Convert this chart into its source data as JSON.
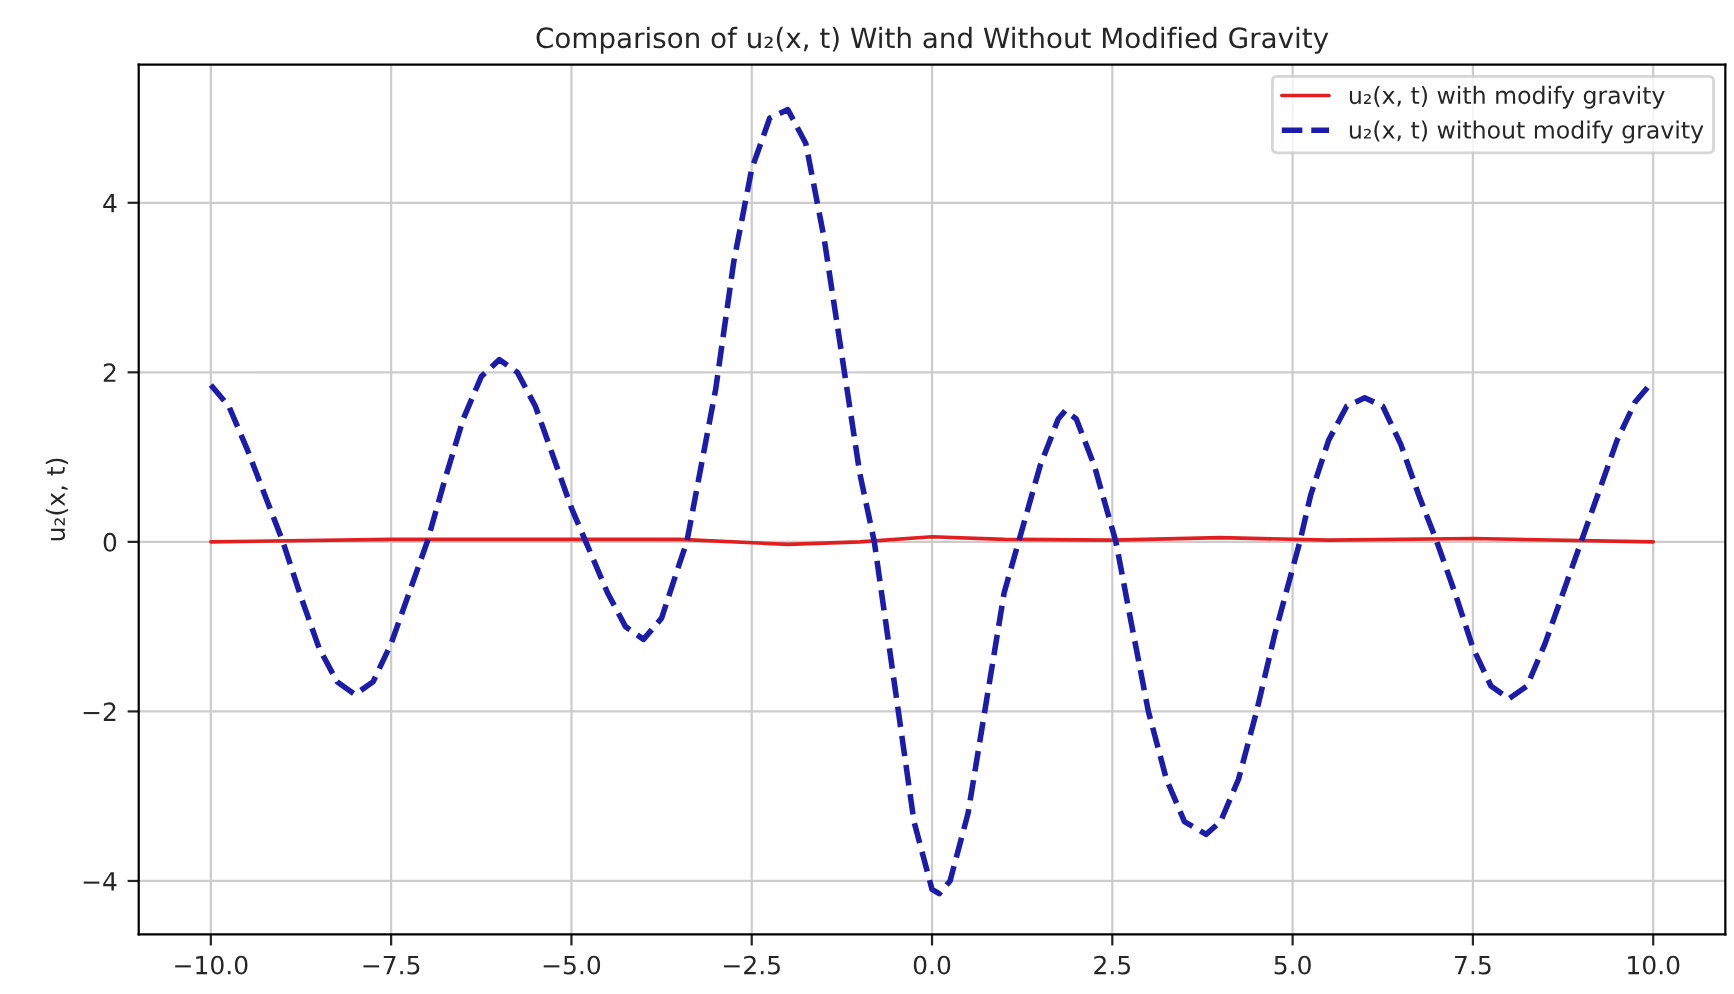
{
  "chart_data": {
    "type": "line",
    "title": "Comparison of u₂(x, t) With and Without Modified Gravity",
    "ylabel": "u₂(x, t)",
    "series": [
      {
        "name": "u₂(x, t) with modify gravity",
        "color": "#e02020",
        "line_style": "solid",
        "x": [
          -10,
          -7.5,
          -5,
          -3.5,
          -2,
          -1,
          0,
          1,
          2.5,
          4,
          5.5,
          7.5,
          10
        ],
        "values": [
          0,
          0.03,
          0.03,
          0.03,
          -0.03,
          0,
          0.06,
          0.03,
          0.02,
          0.05,
          0.02,
          0.04,
          0
        ]
      },
      {
        "name": "u₂(x, t) without modify gravity",
        "color": "#1c1caa",
        "line_style": "dashed",
        "x": [
          -10,
          -9.75,
          -9.5,
          -9.25,
          -9.0,
          -8.75,
          -8.5,
          -8.25,
          -8.0,
          -7.75,
          -7.5,
          -7.25,
          -7.0,
          -6.75,
          -6.5,
          -6.25,
          -6.0,
          -5.75,
          -5.5,
          -5.25,
          -5.0,
          -4.8,
          -4.5,
          -4.25,
          -4.0,
          -3.75,
          -3.5,
          -3.4,
          -3.0,
          -2.75,
          -2.5,
          -2.25,
          -2.0,
          -1.75,
          -1.5,
          -1.25,
          -1.0,
          -0.8,
          -0.5,
          -0.25,
          0.0,
          0.1,
          0.25,
          0.5,
          0.75,
          1.0,
          1.2,
          1.5,
          1.75,
          1.85,
          2.0,
          2.25,
          2.55,
          2.75,
          3.0,
          3.25,
          3.5,
          3.8,
          4.0,
          4.25,
          4.5,
          4.75,
          5.1,
          5.25,
          5.5,
          5.75,
          6.0,
          6.25,
          6.5,
          6.75,
          7.0,
          7.25,
          7.5,
          7.75,
          8.0,
          8.25,
          8.5,
          8.75,
          9.0,
          9.25,
          9.5,
          9.75,
          10
        ],
        "values": [
          1.85,
          1.6,
          1.1,
          0.55,
          0,
          -0.65,
          -1.25,
          -1.65,
          -1.8,
          -1.65,
          -1.2,
          -0.6,
          0,
          0.75,
          1.45,
          1.95,
          2.15,
          2.0,
          1.6,
          1.0,
          0.4,
          0,
          -0.6,
          -1.0,
          -1.15,
          -0.9,
          -0.25,
          0,
          1.8,
          3.3,
          4.4,
          5.0,
          5.1,
          4.7,
          3.6,
          2.2,
          0.8,
          0,
          -1.8,
          -3.3,
          -4.1,
          -4.15,
          -4.0,
          -3.2,
          -1.9,
          -0.6,
          0,
          0.9,
          1.45,
          1.55,
          1.45,
          0.9,
          0,
          -0.9,
          -2.0,
          -2.8,
          -3.3,
          -3.45,
          -3.3,
          -2.8,
          -2.0,
          -1.1,
          0,
          0.55,
          1.2,
          1.6,
          1.7,
          1.6,
          1.15,
          0.55,
          0,
          -0.6,
          -1.25,
          -1.7,
          -1.85,
          -1.7,
          -1.2,
          -0.6,
          0,
          0.6,
          1.2,
          1.65,
          1.9
        ]
      }
    ],
    "xlim": [
      -11,
      11
    ],
    "xticks": [
      {
        "value": -10,
        "label": "−10.0"
      },
      {
        "value": -7.5,
        "label": "−7.5"
      },
      {
        "value": -5,
        "label": "−5.0"
      },
      {
        "value": -2.5,
        "label": "−2.5"
      },
      {
        "value": 0,
        "label": "0.0"
      },
      {
        "value": 2.5,
        "label": "2.5"
      },
      {
        "value": 5,
        "label": "5.0"
      },
      {
        "value": 7.5,
        "label": "7.5"
      },
      {
        "value": 10,
        "label": "10.0"
      }
    ],
    "ylim": [
      -4.63,
      5.63
    ],
    "yticks": [
      {
        "value": -4,
        "label": "−4"
      },
      {
        "value": -2,
        "label": "−2"
      },
      0,
      2,
      4
    ],
    "grid": true,
    "legend": "top right",
    "marker": "none"
  }
}
